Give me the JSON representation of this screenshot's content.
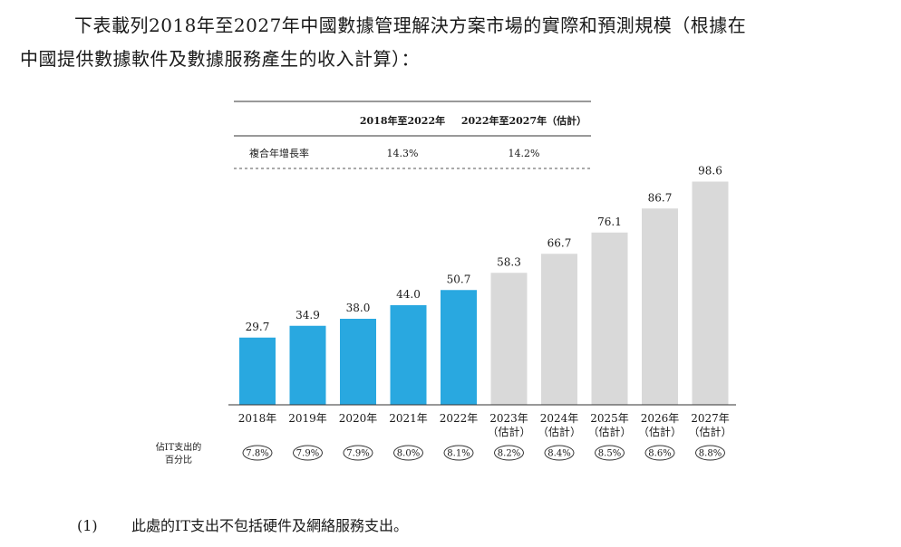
{
  "intro": {
    "line1": "下表載列2018年至2027年中國數據管理解決方案市場的實際和預測規模（根據在",
    "line2": "中國提供數據軟件及數據服務產生的收入計算）："
  },
  "cagr_table": {
    "headers": [
      "",
      "2018年至2022年",
      "2022年至2027年（估計）"
    ],
    "row_label": "複合年增長率",
    "values": [
      "14.3%",
      "14.2%"
    ]
  },
  "chart_data": {
    "type": "bar",
    "categories": [
      "2018年",
      "2019年",
      "2020年",
      "2021年",
      "2022年",
      "2023年",
      "2024年",
      "2025年",
      "2026年",
      "2027年"
    ],
    "category_notes": [
      "",
      "",
      "",
      "",
      "",
      "（估計）",
      "（估計）",
      "（估計）",
      "（估計）",
      "（估計）"
    ],
    "values": [
      29.7,
      34.9,
      38.0,
      44.0,
      50.7,
      58.3,
      66.7,
      76.1,
      86.7,
      98.6
    ],
    "value_labels": [
      "29.7",
      "34.9",
      "38.0",
      "44.0",
      "50.7",
      "58.3",
      "66.7",
      "76.1",
      "86.7",
      "98.6"
    ],
    "actual_count": 5,
    "colors": {
      "actual": "#29a8e0",
      "forecast": "#d9d9d9"
    },
    "ylim": [
      0,
      100
    ],
    "it_spend": {
      "label_line1": "佔IT支出的",
      "label_line2": "百分比",
      "values": [
        "7.8%",
        "7.9%",
        "7.9%",
        "8.0%",
        "8.1%",
        "8.2%",
        "8.4%",
        "8.5%",
        "8.6%",
        "8.8%"
      ]
    }
  },
  "footnote": {
    "num": "(1)",
    "text": "此處的IT支出不包括硬件及網絡服務支出。"
  }
}
